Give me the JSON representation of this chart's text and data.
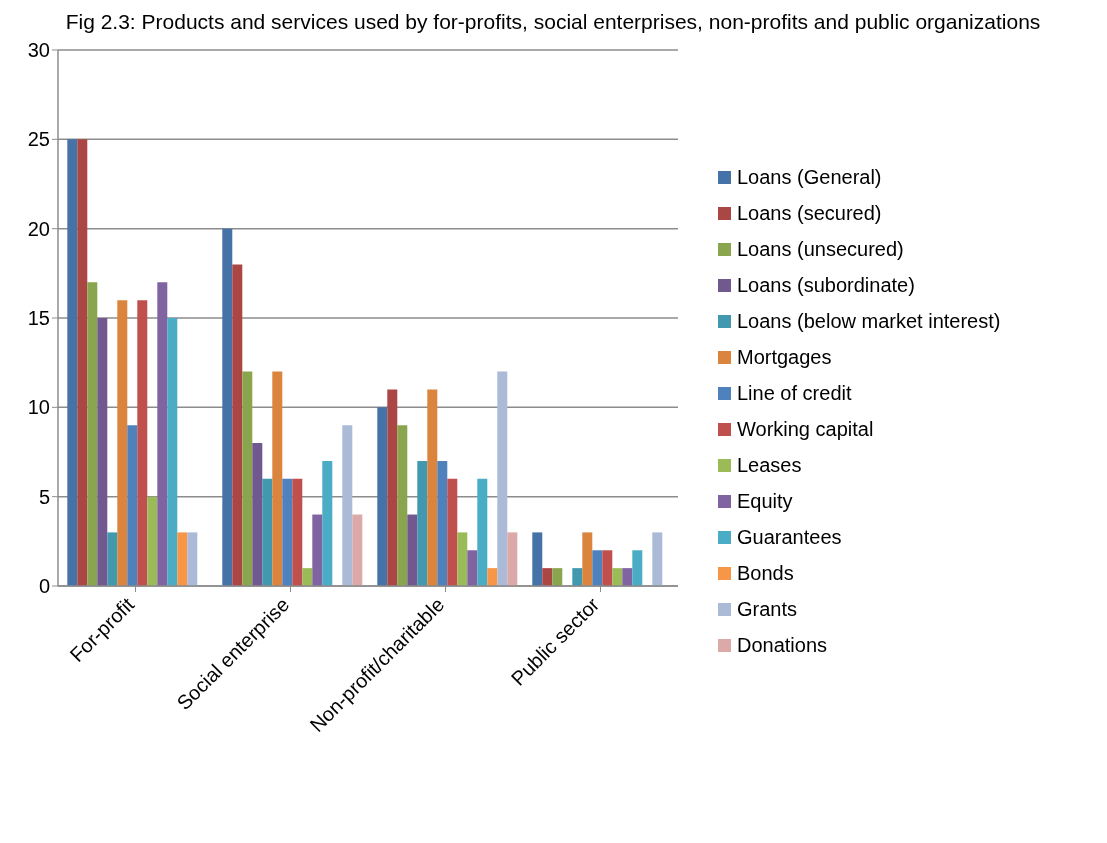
{
  "chart_data": {
    "type": "bar",
    "title": "Fig 2.3: Products and services used by for-profits, social enterprises, non-profits and public organizations",
    "categories": [
      "For-profit",
      "Social enterprise",
      "Non-profit/charitable",
      "Public sector"
    ],
    "series": [
      {
        "name": "Loans (General)",
        "color": "#4572a7",
        "values": [
          25,
          20,
          10,
          3
        ]
      },
      {
        "name": "Loans (secured)",
        "color": "#aa4643",
        "values": [
          25,
          18,
          11,
          1
        ]
      },
      {
        "name": "Loans (unsecured)",
        "color": "#89a54e",
        "values": [
          17,
          12,
          9,
          1
        ]
      },
      {
        "name": "Loans (subordinate)",
        "color": "#71588f",
        "values": [
          15,
          8,
          4,
          null
        ]
      },
      {
        "name": "Loans (below market interest)",
        "color": "#4198af",
        "values": [
          3,
          6,
          7,
          1
        ]
      },
      {
        "name": "Mortgages",
        "color": "#db843d",
        "values": [
          16,
          12,
          11,
          3
        ]
      },
      {
        "name": "Line of credit",
        "color": "#4f81bd",
        "values": [
          9,
          6,
          7,
          2
        ]
      },
      {
        "name": "Working capital",
        "color": "#c0504d",
        "values": [
          16,
          6,
          6,
          2
        ]
      },
      {
        "name": "Leases",
        "color": "#9bbb59",
        "values": [
          5,
          1,
          3,
          1
        ]
      },
      {
        "name": "Equity",
        "color": "#8064a2",
        "values": [
          17,
          4,
          2,
          1
        ]
      },
      {
        "name": "Guarantees",
        "color": "#4bacc6",
        "values": [
          15,
          7,
          6,
          2
        ]
      },
      {
        "name": "Bonds",
        "color": "#f79646",
        "values": [
          3,
          null,
          1,
          null
        ]
      },
      {
        "name": "Grants",
        "color": "#aabad7",
        "values": [
          3,
          9,
          12,
          3
        ]
      },
      {
        "name": "Donations",
        "color": "#dba9a8",
        "values": [
          null,
          4,
          3,
          null
        ]
      }
    ],
    "ylim": [
      0,
      30
    ],
    "yticks": [
      0,
      5,
      10,
      15,
      20,
      25,
      30
    ],
    "grid": "y",
    "legend": "right"
  }
}
